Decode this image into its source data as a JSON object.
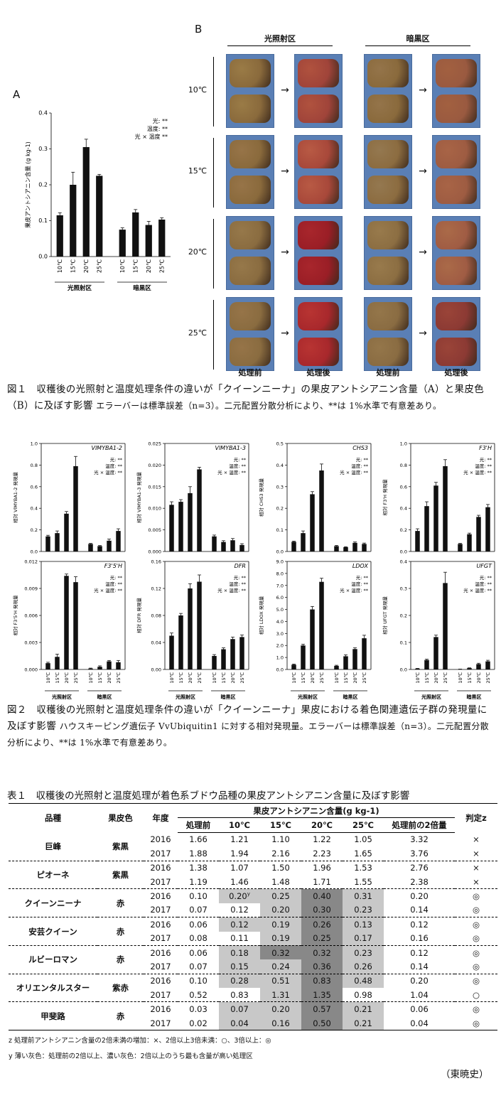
{
  "fig1": {
    "panel_a": "A",
    "panel_b": "B",
    "b_headers": [
      "光照射区",
      "暗黒区"
    ],
    "b_rows": [
      "10℃",
      "15℃",
      "20℃",
      "25℃"
    ],
    "b_columns": [
      "処理前",
      "処理後",
      "処理前",
      "処理後"
    ],
    "caption_title": "図１　収穫後の光照射と温度処理条件の違いが「クイーンニーナ」の果皮アントシアニン含量（A）と果皮色（B）に及ぼす影響",
    "caption_note": "エラーバーは標準誤差（n=3）。二元配置分散分析により、**は 1%水準で有意差あり。"
  },
  "chart_data": [
    {
      "type": "bar",
      "title": "",
      "ylabel": "果皮アントシアニン含量 (g kg-1)",
      "categories": [
        "10℃",
        "15℃",
        "20℃",
        "25℃",
        "10℃",
        "15℃",
        "20℃",
        "25℃"
      ],
      "groups": [
        "光照射区",
        "暗黒区"
      ],
      "values": [
        0.115,
        0.2,
        0.305,
        0.225,
        0.075,
        0.123,
        0.088,
        0.103
      ],
      "errors": [
        0.007,
        0.035,
        0.022,
        0.004,
        0.005,
        0.008,
        0.01,
        0.005
      ],
      "ylim": [
        0,
        0.4
      ],
      "yticks": [
        "0.0",
        "0.1",
        "0.2",
        "0.3",
        "0.4"
      ],
      "annotations": [
        "光: **",
        "温度: **",
        "光 × 温度 **"
      ]
    },
    {
      "type": "bar",
      "title": "VlMYBA1-2",
      "ylabel": "相対 VlMYBA1-2 発現量",
      "categories": [
        "10℃",
        "15℃",
        "20℃",
        "25℃",
        "10℃",
        "15℃",
        "20℃",
        "25℃"
      ],
      "values": [
        0.14,
        0.17,
        0.35,
        0.79,
        0.07,
        0.05,
        0.1,
        0.19
      ],
      "errors": [
        0.01,
        0.02,
        0.02,
        0.09,
        0.005,
        0.005,
        0.015,
        0.02
      ],
      "ylim": [
        0,
        1.0
      ],
      "yticks": [
        "0.0",
        "0.2",
        "0.4",
        "0.6",
        "0.8",
        "1.0"
      ],
      "annotations": [
        "光: **",
        "温度: **",
        "光 × 温度: **"
      ]
    },
    {
      "type": "bar",
      "title": "VlMYBA1-3",
      "ylabel": "相対 VlMYBA1-3 発現量",
      "categories": [
        "10℃",
        "15℃",
        "20℃",
        "25℃",
        "10℃",
        "15℃",
        "20℃",
        "25℃"
      ],
      "values": [
        0.0108,
        0.0115,
        0.0135,
        0.019,
        0.0035,
        0.0022,
        0.0026,
        0.0015
      ],
      "errors": [
        0.0007,
        0.0005,
        0.0015,
        0.0005,
        0.0003,
        0.0003,
        0.0004,
        0.0003
      ],
      "ylim": [
        0,
        0.025
      ],
      "yticks": [
        "0.000",
        "0.005",
        "0.010",
        "0.015",
        "0.020",
        "0.025"
      ],
      "annotations": [
        "光: **",
        "温度: **",
        "光 × 温度: **"
      ]
    },
    {
      "type": "bar",
      "title": "CHS3",
      "ylabel": "相対 CHS3 発現量",
      "categories": [
        "10℃",
        "15℃",
        "20℃",
        "25℃",
        "10℃",
        "15℃",
        "20℃",
        "25℃"
      ],
      "values": [
        0.045,
        0.085,
        0.265,
        0.375,
        0.025,
        0.02,
        0.04,
        0.035
      ],
      "errors": [
        0.003,
        0.01,
        0.012,
        0.03,
        0.003,
        0.002,
        0.004,
        0.004
      ],
      "ylim": [
        0,
        0.5
      ],
      "yticks": [
        "0.0",
        "0.1",
        "0.2",
        "0.3",
        "0.4",
        "0.5"
      ],
      "annotations": [
        "光: **",
        "温度: **",
        "光 × 温度: **"
      ]
    },
    {
      "type": "bar",
      "title": "F3'H",
      "ylabel": "相対 F3'H 発現量",
      "categories": [
        "10℃",
        "15℃",
        "20℃",
        "25℃",
        "10℃",
        "15℃",
        "20℃",
        "25℃"
      ],
      "values": [
        0.19,
        0.42,
        0.61,
        0.79,
        0.07,
        0.16,
        0.32,
        0.41
      ],
      "errors": [
        0.02,
        0.04,
        0.03,
        0.06,
        0.005,
        0.01,
        0.015,
        0.025
      ],
      "ylim": [
        0,
        1.0
      ],
      "yticks": [
        "0.0",
        "0.2",
        "0.4",
        "0.6",
        "0.8",
        "1.0"
      ],
      "annotations": [
        "光: **",
        "温度: **",
        "光 × 温度: **"
      ]
    },
    {
      "type": "bar",
      "title": "F3'5'H",
      "ylabel": "相対 F3'5'H 発現量",
      "categories": [
        "10℃",
        "15℃",
        "20℃",
        "25℃",
        "10℃",
        "15℃",
        "20℃",
        "25℃"
      ],
      "values": [
        0.0007,
        0.0014,
        0.0104,
        0.0097,
        0.0001,
        0.0003,
        0.0009,
        0.0008
      ],
      "errors": [
        0.0001,
        0.0003,
        0.0002,
        0.0006,
        5e-05,
        0.0001,
        0.0001,
        0.0002
      ],
      "ylim": [
        0,
        0.012
      ],
      "yticks": [
        "0.000",
        "0.003",
        "0.006",
        "0.009",
        "0.012"
      ],
      "annotations": [
        "光: **",
        "温度: **",
        "光 × 温度: **"
      ]
    },
    {
      "type": "bar",
      "title": "DFR",
      "ylabel": "相対 DFR 発現量",
      "categories": [
        "10℃",
        "15℃",
        "20℃",
        "25℃",
        "10℃",
        "15℃",
        "20℃",
        "25℃"
      ],
      "values": [
        0.05,
        0.08,
        0.12,
        0.13,
        0.02,
        0.03,
        0.045,
        0.048
      ],
      "errors": [
        0.004,
        0.003,
        0.007,
        0.01,
        0.002,
        0.002,
        0.003,
        0.003
      ],
      "ylim": [
        0,
        0.16
      ],
      "yticks": [
        "0.00",
        "0.04",
        "0.08",
        "0.12",
        "0.16"
      ],
      "annotations": [
        "光: **",
        "温度: **",
        "光 × 温度: **"
      ]
    },
    {
      "type": "bar",
      "title": "LDOX",
      "ylabel": "相対 LDOX 発現量",
      "categories": [
        "10℃",
        "15℃",
        "20℃",
        "25℃",
        "10℃",
        "15℃",
        "20℃",
        "25℃"
      ],
      "values": [
        0.4,
        2.0,
        5.0,
        7.3,
        0.3,
        1.1,
        1.7,
        2.6
      ],
      "errors": [
        0.05,
        0.1,
        0.25,
        0.3,
        0.05,
        0.12,
        0.1,
        0.25
      ],
      "ylim": [
        0,
        9.0
      ],
      "yticks": [
        "0.0",
        "1.0",
        "2.0",
        "3.0",
        "4.0",
        "5.0",
        "6.0",
        "7.0",
        "8.0",
        "9.0"
      ],
      "annotations": [
        "光: **",
        "温度: **",
        "光 × 温度: **"
      ]
    },
    {
      "type": "bar",
      "title": "UFGT",
      "ylabel": "相対 UFGT 発現量",
      "categories": [
        "10℃",
        "15℃",
        "20℃",
        "25℃",
        "10℃",
        "15℃",
        "20℃",
        "25℃"
      ],
      "values": [
        0.003,
        0.035,
        0.12,
        0.32,
        0.001,
        0.005,
        0.02,
        0.03
      ],
      "errors": [
        0.001,
        0.003,
        0.007,
        0.04,
        0.0005,
        0.001,
        0.003,
        0.004
      ],
      "ylim": [
        0,
        0.4
      ],
      "yticks": [
        "0.0",
        "0.1",
        "0.2",
        "0.3",
        "0.4"
      ],
      "annotations": [
        "光: **",
        "温度: **",
        "光 × 温度: **"
      ]
    }
  ],
  "fig2": {
    "groups": [
      "光照射区",
      "暗黒区"
    ],
    "caption_title": "図２　収穫後の光照射と温度処理条件の違いが「クイーンニーナ」果皮における着色関連遺伝子群の発現量に及ぼす影響",
    "caption_note": "ハウスキーピング遺伝子 VvUbiquitin1 に対する相対発現量。エラーバーは標準誤差（n=3）。二元配置分散分析により、**は 1%水準で有意差あり。"
  },
  "table1": {
    "title": "表１　収穫後の光照射と温度処理が着色系ブドウ品種の果皮アントシアニン含量に及ぼす影響",
    "headers": {
      "variety": "品種",
      "color": "果皮色",
      "year": "年度",
      "content": "果皮アントシアニン含量",
      "unit": "(g kg-1)",
      "judge": "判定z",
      "cols": [
        "処理前",
        "10℃",
        "15℃",
        "20℃",
        "25℃",
        "処理前の2倍量"
      ]
    },
    "varieties": [
      {
        "name": "巨峰",
        "color": "紫黒",
        "rows": [
          {
            "year": "2016",
            "vals": [
              "1.66",
              "1.21",
              "1.10",
              "1.22",
              "1.05",
              "3.32"
            ],
            "shade": [
              "",
              "",
              "",
              "",
              "",
              ""
            ],
            "judge": "×"
          },
          {
            "year": "2017",
            "vals": [
              "1.88",
              "1.94",
              "2.16",
              "2.23",
              "1.65",
              "3.76"
            ],
            "shade": [
              "",
              "",
              "",
              "",
              "",
              ""
            ],
            "judge": "×"
          }
        ]
      },
      {
        "name": "ピオーネ",
        "color": "紫黒",
        "rows": [
          {
            "year": "2016",
            "vals": [
              "1.38",
              "1.07",
              "1.50",
              "1.96",
              "1.53",
              "2.76"
            ],
            "shade": [
              "",
              "",
              "",
              "",
              "",
              ""
            ],
            "judge": "×"
          },
          {
            "year": "2017",
            "vals": [
              "1.19",
              "1.46",
              "1.48",
              "1.71",
              "1.55",
              "2.38"
            ],
            "shade": [
              "",
              "",
              "",
              "",
              "",
              ""
            ],
            "judge": "×"
          }
        ]
      },
      {
        "name": "クイーンニーナ",
        "color": "赤",
        "rows": [
          {
            "year": "2016",
            "vals": [
              "0.10",
              "0.20y",
              "0.25",
              "0.40",
              "0.31",
              "0.20"
            ],
            "shade": [
              "",
              "g1",
              "g1",
              "g2",
              "g1",
              ""
            ],
            "judge": "◎"
          },
          {
            "year": "2017",
            "vals": [
              "0.07",
              "0.12",
              "0.20",
              "0.30",
              "0.23",
              "0.14"
            ],
            "shade": [
              "",
              "",
              "g1",
              "g2",
              "g1",
              ""
            ],
            "judge": "◎"
          }
        ]
      },
      {
        "name": "安芸クイーン",
        "color": "赤",
        "rows": [
          {
            "year": "2016",
            "vals": [
              "0.06",
              "0.12",
              "0.19",
              "0.26",
              "0.13",
              "0.12"
            ],
            "shade": [
              "",
              "g1",
              "g1",
              "g2",
              "g1",
              ""
            ],
            "judge": "◎"
          },
          {
            "year": "2017",
            "vals": [
              "0.08",
              "0.11",
              "0.19",
              "0.25",
              "0.17",
              "0.16"
            ],
            "shade": [
              "",
              "",
              "g1",
              "g2",
              "g1",
              ""
            ],
            "judge": "◎"
          }
        ]
      },
      {
        "name": "ルビーロマン",
        "color": "赤",
        "rows": [
          {
            "year": "2016",
            "vals": [
              "0.06",
              "0.18",
              "0.32",
              "0.32",
              "0.23",
              "0.12"
            ],
            "shade": [
              "",
              "g1",
              "g2",
              "g2",
              "g1",
              ""
            ],
            "judge": "◎"
          },
          {
            "year": "2017",
            "vals": [
              "0.07",
              "0.15",
              "0.24",
              "0.36",
              "0.26",
              "0.14"
            ],
            "shade": [
              "",
              "g1",
              "g1",
              "g2",
              "g1",
              ""
            ],
            "judge": "◎"
          }
        ]
      },
      {
        "name": "オリエンタルスター",
        "color": "紫赤",
        "rows": [
          {
            "year": "2016",
            "vals": [
              "0.10",
              "0.28",
              "0.51",
              "0.83",
              "0.48",
              "0.20"
            ],
            "shade": [
              "",
              "g1",
              "g1",
              "g2",
              "g1",
              ""
            ],
            "judge": "◎"
          },
          {
            "year": "2017",
            "vals": [
              "0.52",
              "0.83",
              "1.31",
              "1.35",
              "0.98",
              "1.04"
            ],
            "shade": [
              "",
              "",
              "g1",
              "g2",
              "",
              ""
            ],
            "judge": "○"
          }
        ]
      },
      {
        "name": "甲斐路",
        "color": "赤",
        "rows": [
          {
            "year": "2016",
            "vals": [
              "0.03",
              "0.07",
              "0.20",
              "0.57",
              "0.21",
              "0.06"
            ],
            "shade": [
              "",
              "g1",
              "g1",
              "g2",
              "g1",
              ""
            ],
            "judge": "◎"
          },
          {
            "year": "2017",
            "vals": [
              "0.02",
              "0.04",
              "0.16",
              "0.50",
              "0.21",
              "0.04"
            ],
            "shade": [
              "",
              "g1",
              "g1",
              "g2",
              "g1",
              ""
            ],
            "judge": "◎"
          }
        ]
      }
    ],
    "footnote_z": "z 処理前アントシアニン含量の2倍未満の増加：×、2倍以上3倍未満：○、3倍以上：◎",
    "footnote_y": "y 薄い灰色：処理前の2倍以上、濃い灰色：2倍以上のうち最も含量が高い処理区"
  },
  "author": "（東暁史）"
}
